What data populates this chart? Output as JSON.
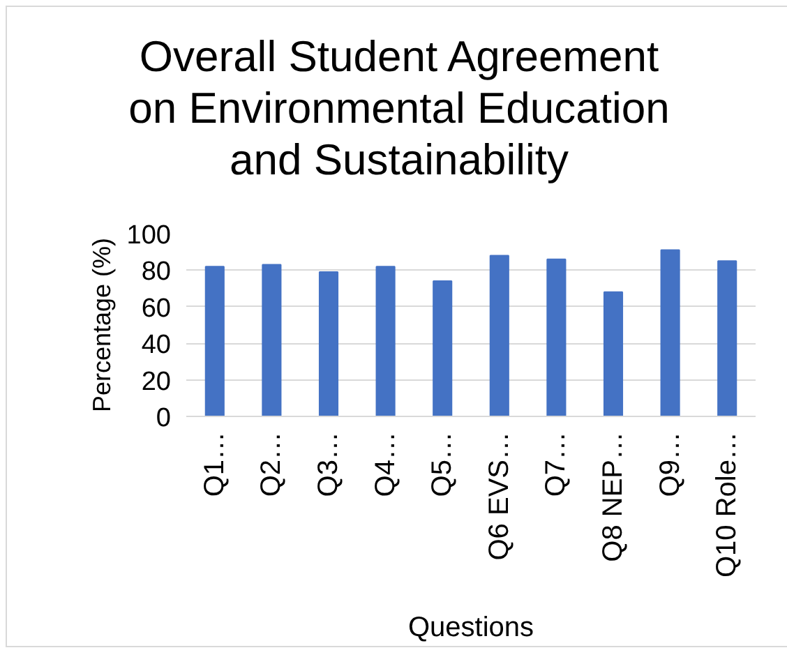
{
  "chart_data": {
    "type": "bar",
    "title": "Overall Student Agreement\non Environmental Education\nand Sustainability",
    "xlabel": "Questions",
    "ylabel": "Percentage (%)",
    "categories": [
      "Q1…",
      "Q2…",
      "Q3…",
      "Q4…",
      "Q5…",
      "Q6 EVS…",
      "Q7…",
      "Q8 NEP…",
      "Q9…",
      "Q10 Role…"
    ],
    "values": [
      82,
      83,
      79,
      82,
      74,
      88,
      86,
      68,
      91,
      85
    ],
    "color": "#4472c4",
    "ylim": [
      0,
      100
    ],
    "yticks": [
      0,
      20,
      40,
      60,
      80,
      100
    ],
    "grid": "y"
  }
}
